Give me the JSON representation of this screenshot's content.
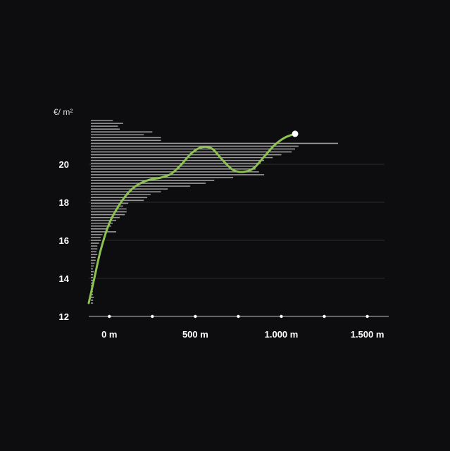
{
  "chart_data": {
    "type": "line",
    "ylabel": "€/ m²",
    "xlabel": "",
    "ylim": [
      12,
      22.3
    ],
    "xlim": [
      -120,
      1600
    ],
    "grid": true,
    "y_ticks": [
      {
        "value": 12,
        "label": "12"
      },
      {
        "value": 14,
        "label": "14"
      },
      {
        "value": 16,
        "label": "16"
      },
      {
        "value": 18,
        "label": "18"
      },
      {
        "value": 20,
        "label": "20"
      }
    ],
    "x_ticks": [
      {
        "value": 0,
        "label": "0 m"
      },
      {
        "value": 500,
        "label": "500 m"
      },
      {
        "value": 1000,
        "label": "1.000 m"
      },
      {
        "value": 1500,
        "label": "1.500 m"
      }
    ],
    "x_dots": [
      0,
      250,
      500,
      750,
      1000,
      1250,
      1500
    ],
    "series": [
      {
        "color": "#8dc150",
        "x": [
          -120,
          -90,
          -50,
          0,
          60,
          120,
          180,
          240,
          300,
          360,
          420,
          480,
          540,
          600,
          660,
          720,
          780,
          840,
          900,
          960,
          1020,
          1080
        ],
        "values": [
          12.7,
          13.9,
          15.5,
          16.9,
          17.9,
          18.6,
          19.0,
          19.2,
          19.3,
          19.5,
          20.0,
          20.6,
          20.9,
          20.8,
          20.2,
          19.7,
          19.6,
          19.8,
          20.4,
          21.0,
          21.4,
          21.6
        ]
      }
    ],
    "endpoint": {
      "x": 1080,
      "y": 21.6,
      "color": "#ffffff"
    },
    "distribution": {
      "color": "#9a9a9a",
      "y": [
        22.3,
        22.15,
        22.0,
        21.85,
        21.7,
        21.55,
        21.4,
        21.25,
        21.1,
        20.95,
        20.8,
        20.65,
        20.5,
        20.35,
        20.2,
        20.05,
        19.9,
        19.75,
        19.6,
        19.45,
        19.3,
        19.15,
        19.0,
        18.85,
        18.7,
        18.55,
        18.4,
        18.25,
        18.1,
        17.95,
        17.8,
        17.65,
        17.5,
        17.35,
        17.2,
        17.05,
        16.9,
        16.75,
        16.6,
        16.45,
        16.3,
        16.15,
        16.0,
        15.85,
        15.7,
        15.55,
        15.4,
        15.25,
        15.1,
        14.95,
        14.8,
        14.65,
        14.5,
        14.35,
        14.2,
        14.05,
        13.9,
        13.75,
        13.6,
        13.45,
        13.3,
        13.15,
        13.0,
        12.85,
        12.7
      ],
      "x_end": [
        20,
        80,
        50,
        60,
        250,
        200,
        300,
        300,
        1330,
        1100,
        1080,
        1060,
        1000,
        950,
        900,
        880,
        850,
        850,
        870,
        900,
        720,
        610,
        560,
        470,
        340,
        300,
        240,
        220,
        200,
        110,
        80,
        100,
        100,
        90,
        60,
        40,
        20,
        10,
        -10,
        40,
        -40,
        -50,
        -50,
        -60,
        -70,
        -70,
        -75,
        -70,
        -80,
        -80,
        -85,
        -90,
        -95,
        -90,
        -95,
        -95,
        -95,
        -90,
        -95,
        -95,
        -95,
        -95,
        -90,
        -95,
        -95
      ]
    }
  }
}
